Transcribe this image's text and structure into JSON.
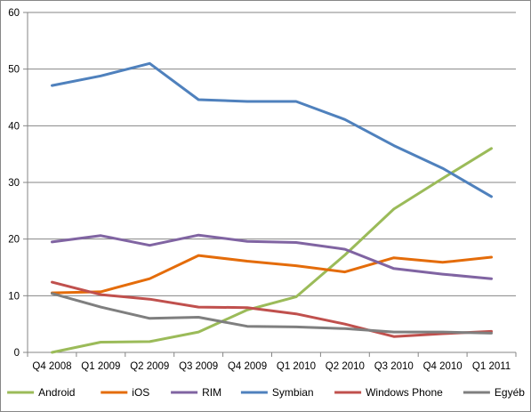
{
  "chart_data": {
    "type": "line",
    "title": "",
    "xlabel": "",
    "ylabel": "",
    "categories": [
      "Q4 2008",
      "Q1 2009",
      "Q2 2009",
      "Q3 2009",
      "Q4 2009",
      "Q1 2010",
      "Q2 2010",
      "Q3 2010",
      "Q4 2010",
      "Q1 2011"
    ],
    "ylim": [
      0,
      60
    ],
    "yticks": [
      "0",
      "10",
      "20",
      "30",
      "40",
      "50",
      "60"
    ],
    "grid": "horizontal",
    "legend_position": "bottom",
    "series": [
      {
        "name": "Android",
        "color": "#9BBB59",
        "values": [
          0,
          1.8,
          1.9,
          3.6,
          7.5,
          9.8,
          17.2,
          25.3,
          30.7,
          36.0
        ]
      },
      {
        "name": "iOS",
        "color": "#E46C0A",
        "values": [
          10.5,
          10.7,
          13.0,
          17.1,
          16.1,
          15.3,
          14.2,
          16.7,
          15.9,
          16.8
        ]
      },
      {
        "name": "RIM",
        "color": "#8064A2",
        "values": [
          19.5,
          20.6,
          18.9,
          20.7,
          19.6,
          19.4,
          18.2,
          14.8,
          13.8,
          13.0
        ]
      },
      {
        "name": "Symbian",
        "color": "#4F81BD",
        "values": [
          47.1,
          48.8,
          51.0,
          44.6,
          44.3,
          44.3,
          41.1,
          36.5,
          32.5,
          27.5
        ]
      },
      {
        "name": "Windows Phone",
        "color": "#C0504D",
        "values": [
          12.4,
          10.2,
          9.4,
          8.0,
          7.9,
          6.8,
          5.0,
          2.8,
          3.3,
          3.7
        ]
      },
      {
        "name": "Egyéb",
        "color": "#7F7F7F",
        "values": [
          10.4,
          8.0,
          6.0,
          6.2,
          4.6,
          4.5,
          4.2,
          3.6,
          3.6,
          3.4
        ]
      }
    ]
  }
}
